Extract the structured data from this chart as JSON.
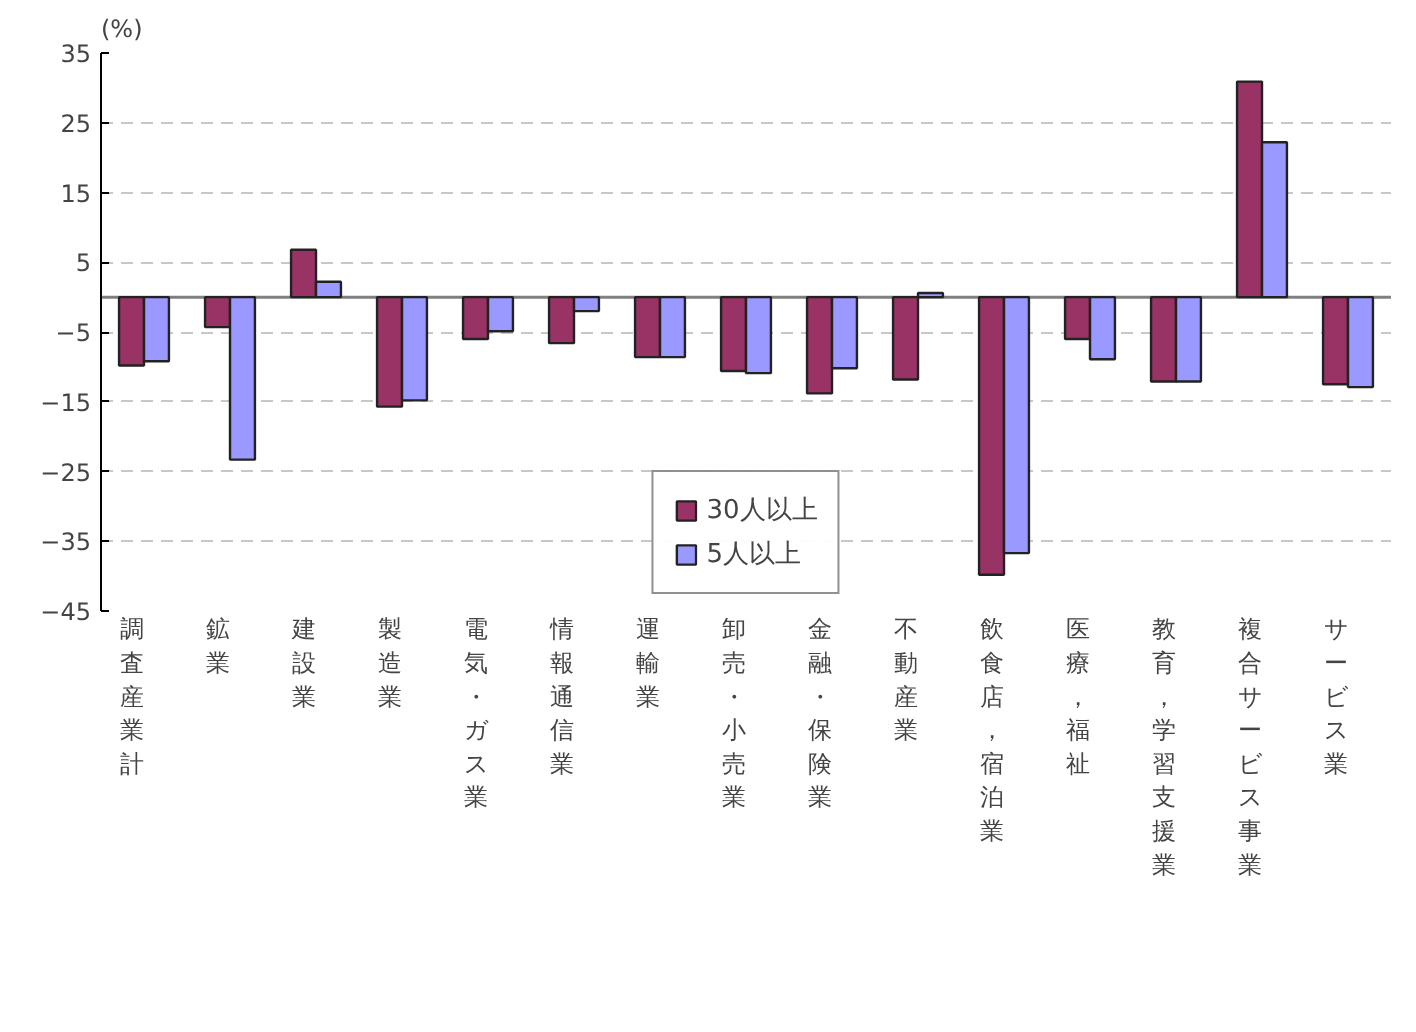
{
  "chart_data": {
    "type": "bar",
    "ylabel": "(%)",
    "categories": [
      "調査産業計",
      "鉱業",
      "建設業",
      "製造業",
      "電気・ガス業",
      "情報通信業",
      "運輸業",
      "卸売・小売業",
      "金融・保険業",
      "不動産業",
      "飲食店，宿泊業",
      "医療，福祉",
      "教育，学習支援業",
      "複合サービス事業",
      "サービス業"
    ],
    "series": [
      {
        "name": "30人以上",
        "color": "#993366",
        "values": [
          -9.8,
          -4.3,
          6.8,
          -15.7,
          -6.0,
          -6.6,
          -8.6,
          -10.6,
          -13.8,
          -11.8,
          -39.8,
          -6.0,
          -12.1,
          30.9,
          -12.5
        ]
      },
      {
        "name": "5人以上",
        "color": "#9999ff",
        "values": [
          -9.2,
          -23.3,
          2.2,
          -14.8,
          -4.9,
          -2.0,
          -8.6,
          -10.9,
          -10.2,
          0.6,
          -36.7,
          -8.9,
          -12.1,
          22.2,
          -12.9
        ]
      }
    ],
    "ylim": [
      -45,
      35
    ],
    "yticks": [
      -45,
      -35,
      -25,
      -15,
      -5,
      5,
      15,
      25,
      35
    ],
    "grid": "y",
    "legend": "bottom"
  }
}
